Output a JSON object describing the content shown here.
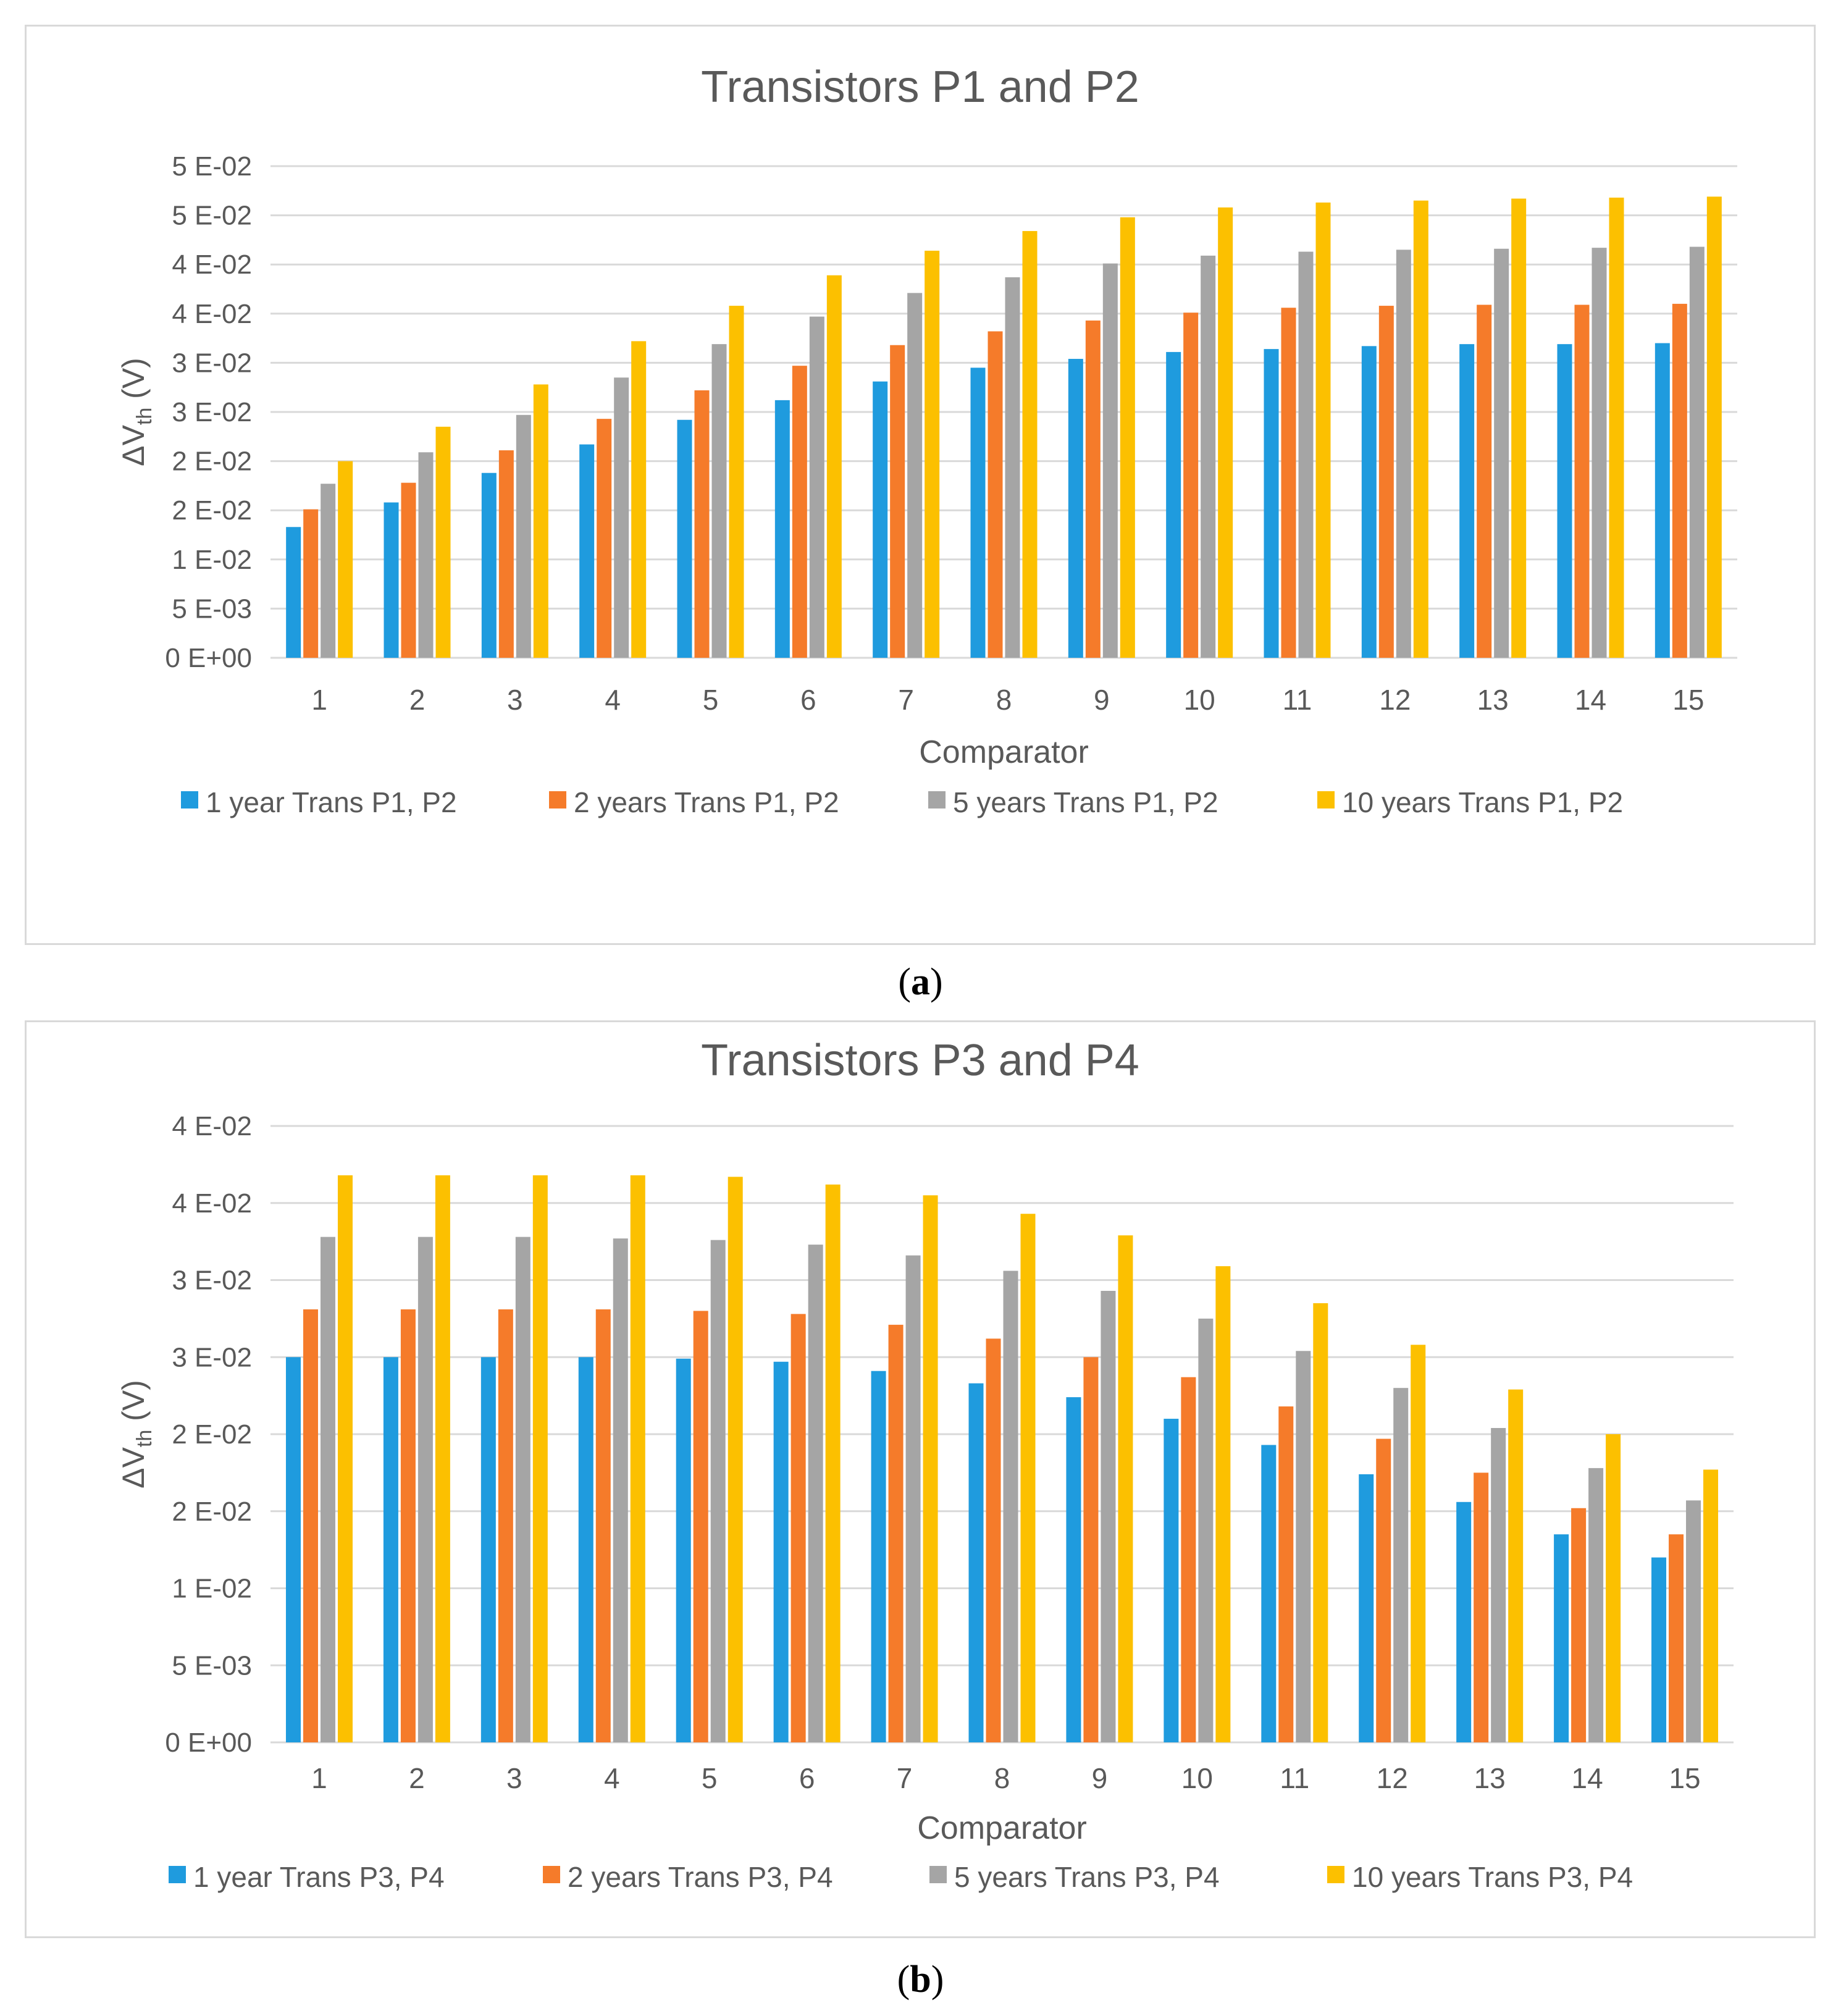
{
  "chart_data": [
    {
      "type": "bar",
      "title": "Transistors P1 and P2",
      "xlabel": "Comparator",
      "ylabel_main": "ΔV",
      "ylabel_sub": "th",
      "ylabel_unit": " (V)",
      "caption": "a",
      "ylim": [
        0,
        0.05
      ],
      "yticks": [
        0,
        0.005,
        0.01,
        0.015,
        0.02,
        0.025,
        0.03,
        0.035,
        0.04,
        0.045,
        0.05
      ],
      "ytick_labels": [
        "0 E+00",
        "5 E-03",
        "1 E-02",
        "2 E-02",
        "2 E-02",
        "3 E-02",
        "3 E-02",
        "4 E-02",
        "4 E-02",
        "5 E-02",
        "5 E-02"
      ],
      "categories": [
        "1",
        "2",
        "3",
        "4",
        "5",
        "6",
        "7",
        "8",
        "9",
        "10",
        "11",
        "12",
        "13",
        "14",
        "15"
      ],
      "legend_position": "bottom",
      "series": [
        {
          "name": "1 year Trans P1, P2",
          "color": "#1f9bde",
          "values": [
            0.0133,
            0.0158,
            0.0188,
            0.0217,
            0.0242,
            0.0262,
            0.0281,
            0.0295,
            0.0304,
            0.0311,
            0.0314,
            0.0317,
            0.0319,
            0.0319,
            0.032
          ]
        },
        {
          "name": "2 years Trans P1, P2",
          "color": "#f57b2a",
          "values": [
            0.0151,
            0.0178,
            0.0211,
            0.0243,
            0.0272,
            0.0297,
            0.0318,
            0.0332,
            0.0343,
            0.0351,
            0.0356,
            0.0358,
            0.0359,
            0.0359,
            0.036
          ]
        },
        {
          "name": "5 years Trans P1, P2",
          "color": "#a5a5a5",
          "values": [
            0.0177,
            0.0209,
            0.0247,
            0.0285,
            0.0319,
            0.0347,
            0.0371,
            0.0387,
            0.0401,
            0.0409,
            0.0413,
            0.0415,
            0.0416,
            0.0417,
            0.0418
          ]
        },
        {
          "name": "10 years Trans P1, P2",
          "color": "#fcc000",
          "values": [
            0.02,
            0.0235,
            0.0278,
            0.0322,
            0.0358,
            0.0389,
            0.0414,
            0.0434,
            0.0448,
            0.0458,
            0.0463,
            0.0465,
            0.0467,
            0.0468,
            0.0469
          ]
        }
      ]
    },
    {
      "type": "bar",
      "title": "Transistors P3 and P4",
      "xlabel": "Comparator",
      "ylabel_main": "ΔV",
      "ylabel_sub": "th",
      "ylabel_unit": " (V)",
      "caption": "b",
      "ylim": [
        0,
        0.04
      ],
      "yticks": [
        0,
        0.005,
        0.01,
        0.015,
        0.02,
        0.025,
        0.03,
        0.035,
        0.04
      ],
      "ytick_labels": [
        "0 E+00",
        "5 E-03",
        "1 E-02",
        "2 E-02",
        "2 E-02",
        "3 E-02",
        "3 E-02",
        "4 E-02",
        "4 E-02"
      ],
      "categories": [
        "1",
        "2",
        "3",
        "4",
        "5",
        "6",
        "7",
        "8",
        "9",
        "10",
        "11",
        "12",
        "13",
        "14",
        "15"
      ],
      "legend_position": "bottom",
      "series": [
        {
          "name": "1 year Trans P3, P4",
          "color": "#1f9bde",
          "values": [
            0.025,
            0.025,
            0.025,
            0.025,
            0.0249,
            0.0247,
            0.0241,
            0.0233,
            0.0224,
            0.021,
            0.0193,
            0.0174,
            0.0156,
            0.0135,
            0.012
          ]
        },
        {
          "name": "2 years Trans P3, P4",
          "color": "#f57b2a",
          "values": [
            0.0281,
            0.0281,
            0.0281,
            0.0281,
            0.028,
            0.0278,
            0.0271,
            0.0262,
            0.025,
            0.0237,
            0.0218,
            0.0197,
            0.0175,
            0.0152,
            0.0135
          ]
        },
        {
          "name": "5 years Trans P3, P4",
          "color": "#a5a5a5",
          "values": [
            0.0328,
            0.0328,
            0.0328,
            0.0327,
            0.0326,
            0.0323,
            0.0316,
            0.0306,
            0.0293,
            0.0275,
            0.0254,
            0.023,
            0.0204,
            0.0178,
            0.0157
          ]
        },
        {
          "name": "10 years Trans P3, P4",
          "color": "#fcc000",
          "values": [
            0.0368,
            0.0368,
            0.0368,
            0.0368,
            0.0367,
            0.0362,
            0.0355,
            0.0343,
            0.0329,
            0.0309,
            0.0285,
            0.0258,
            0.0229,
            0.02,
            0.0177
          ]
        }
      ]
    }
  ]
}
